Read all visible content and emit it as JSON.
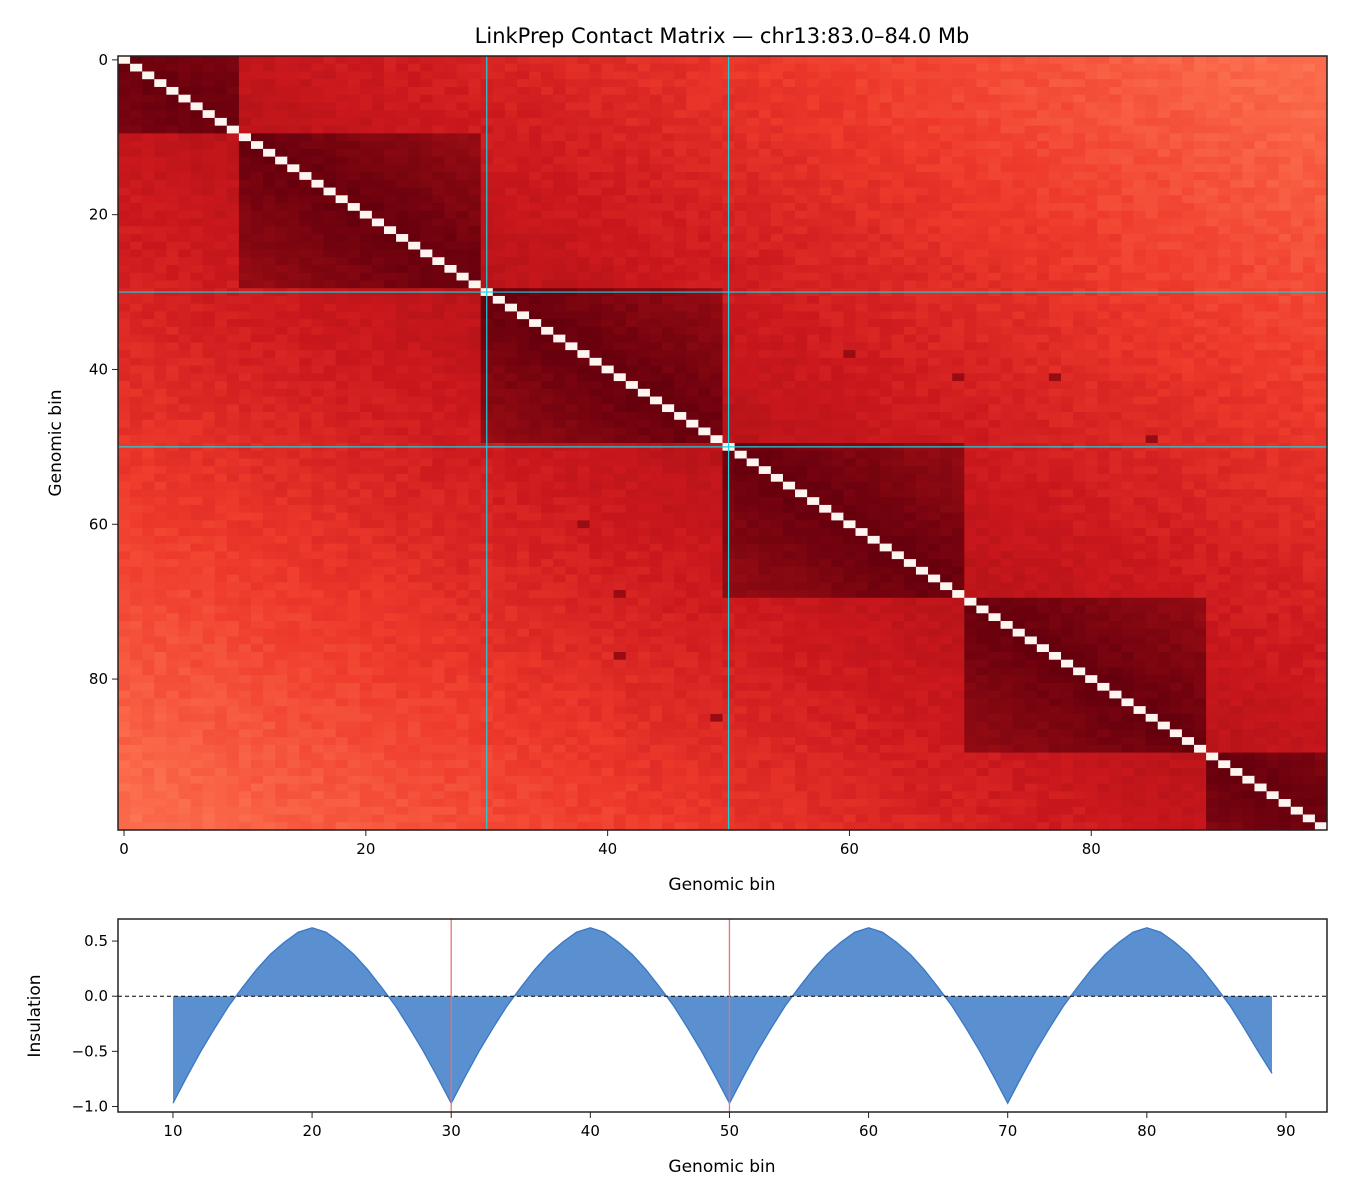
{
  "chart_data": [
    {
      "type": "heatmap",
      "title": "LinkPrep Contact Matrix — chr13:83.0–84.0 Mb",
      "xlabel": "Genomic bin",
      "ylabel": "Genomic bin",
      "n_bins": 100,
      "xlim": [
        -0.5,
        99.5
      ],
      "ylim": [
        99.5,
        -0.5
      ],
      "xticks": [
        0,
        20,
        40,
        60,
        80
      ],
      "yticks": [
        0,
        20,
        40,
        60,
        80
      ],
      "colormap": "Reds",
      "domain_boundaries": [
        0,
        10,
        30,
        50,
        70,
        90,
        100
      ],
      "highlighted_boundaries": [
        30,
        50
      ],
      "highlight_color": "#17d4e0",
      "loops": [
        [
          38,
          60
        ],
        [
          41,
          69
        ],
        [
          41,
          77
        ],
        [
          49,
          85
        ]
      ],
      "diagonal_color": "#fff5f0"
    },
    {
      "type": "area",
      "xlabel": "Genomic bin",
      "ylabel": "Insulation",
      "xlim": [
        6.05,
        92.95
      ],
      "ylim": [
        -1.05,
        0.7
      ],
      "xticks": [
        10,
        20,
        30,
        40,
        50,
        60,
        70,
        80,
        90
      ],
      "yticks": [
        0.5,
        0.0,
        -0.5,
        -1.0
      ],
      "baseline": 0.0,
      "fill_color": "#5a8fd0",
      "line_color": "#3a78c6",
      "marker_lines": [
        30,
        50
      ],
      "marker_color": "#f07070",
      "x_start": 10,
      "values": [
        -0.97,
        -0.73,
        -0.5,
        -0.29,
        -0.09,
        0.08,
        0.24,
        0.38,
        0.49,
        0.58,
        0.62,
        0.58,
        0.49,
        0.38,
        0.24,
        0.08,
        -0.09,
        -0.29,
        -0.5,
        -0.73,
        -0.97,
        -0.73,
        -0.5,
        -0.29,
        -0.09,
        0.08,
        0.24,
        0.38,
        0.49,
        0.58,
        0.62,
        0.58,
        0.49,
        0.38,
        0.24,
        0.08,
        -0.09,
        -0.29,
        -0.5,
        -0.73,
        -0.97,
        -0.73,
        -0.5,
        -0.29,
        -0.09,
        0.08,
        0.24,
        0.38,
        0.49,
        0.58,
        0.62,
        0.58,
        0.49,
        0.38,
        0.24,
        0.08,
        -0.09,
        -0.29,
        -0.5,
        -0.73,
        -0.97,
        -0.73,
        -0.5,
        -0.29,
        -0.09,
        0.08,
        0.24,
        0.38,
        0.49,
        0.58,
        0.62,
        0.58,
        0.49,
        0.38,
        0.24,
        0.08,
        -0.09,
        -0.29,
        -0.5,
        -0.7
      ]
    }
  ]
}
